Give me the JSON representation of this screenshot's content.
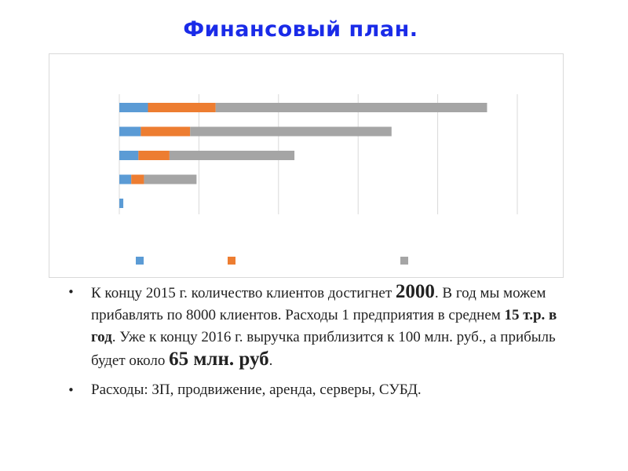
{
  "slide": {
    "title": "Финансовый план.",
    "bullets": [
      {
        "parts": [
          {
            "text": "К концу 2015 г. количество клиентов достигнет ",
            "style": "normal"
          },
          {
            "text": "2000",
            "style": "big"
          },
          {
            "text": ". В год мы можем прибавлять по 8000 клиентов. Расходы 1 предприятия в среднем ",
            "style": "normal"
          },
          {
            "text": "15 т.р. в год",
            "style": "bold"
          },
          {
            "text": ". Уже к концу 2016 г. выручка приблизится к 100 млн. руб., а прибыль будет около ",
            "style": "normal"
          },
          {
            "text": "65 млн. руб",
            "style": "big"
          },
          {
            "text": ".",
            "style": "normal"
          }
        ]
      },
      {
        "parts": [
          {
            "text": "Расходы: ЗП, продвижение, аренда, серверы, СУБД.",
            "style": "normal"
          }
        ]
      }
    ]
  },
  "chart_data": {
    "type": "bar",
    "orientation": "horizontal",
    "stacked": true,
    "categories": [
      "",
      "",
      "",
      "",
      ""
    ],
    "series": [
      {
        "values": [
          3.6,
          2.7,
          2.4,
          1.5,
          0.5
        ],
        "color": "#5b9bd5"
      },
      {
        "values": [
          8.5,
          6.2,
          3.9,
          1.6,
          0.0
        ],
        "color": "#ed7d31"
      },
      {
        "values": [
          34.1,
          25.3,
          15.7,
          6.6,
          0.0
        ],
        "color": "#a5a5a5"
      }
    ],
    "xlim": [
      0,
      50
    ],
    "grid": true,
    "legend": "bottom"
  }
}
